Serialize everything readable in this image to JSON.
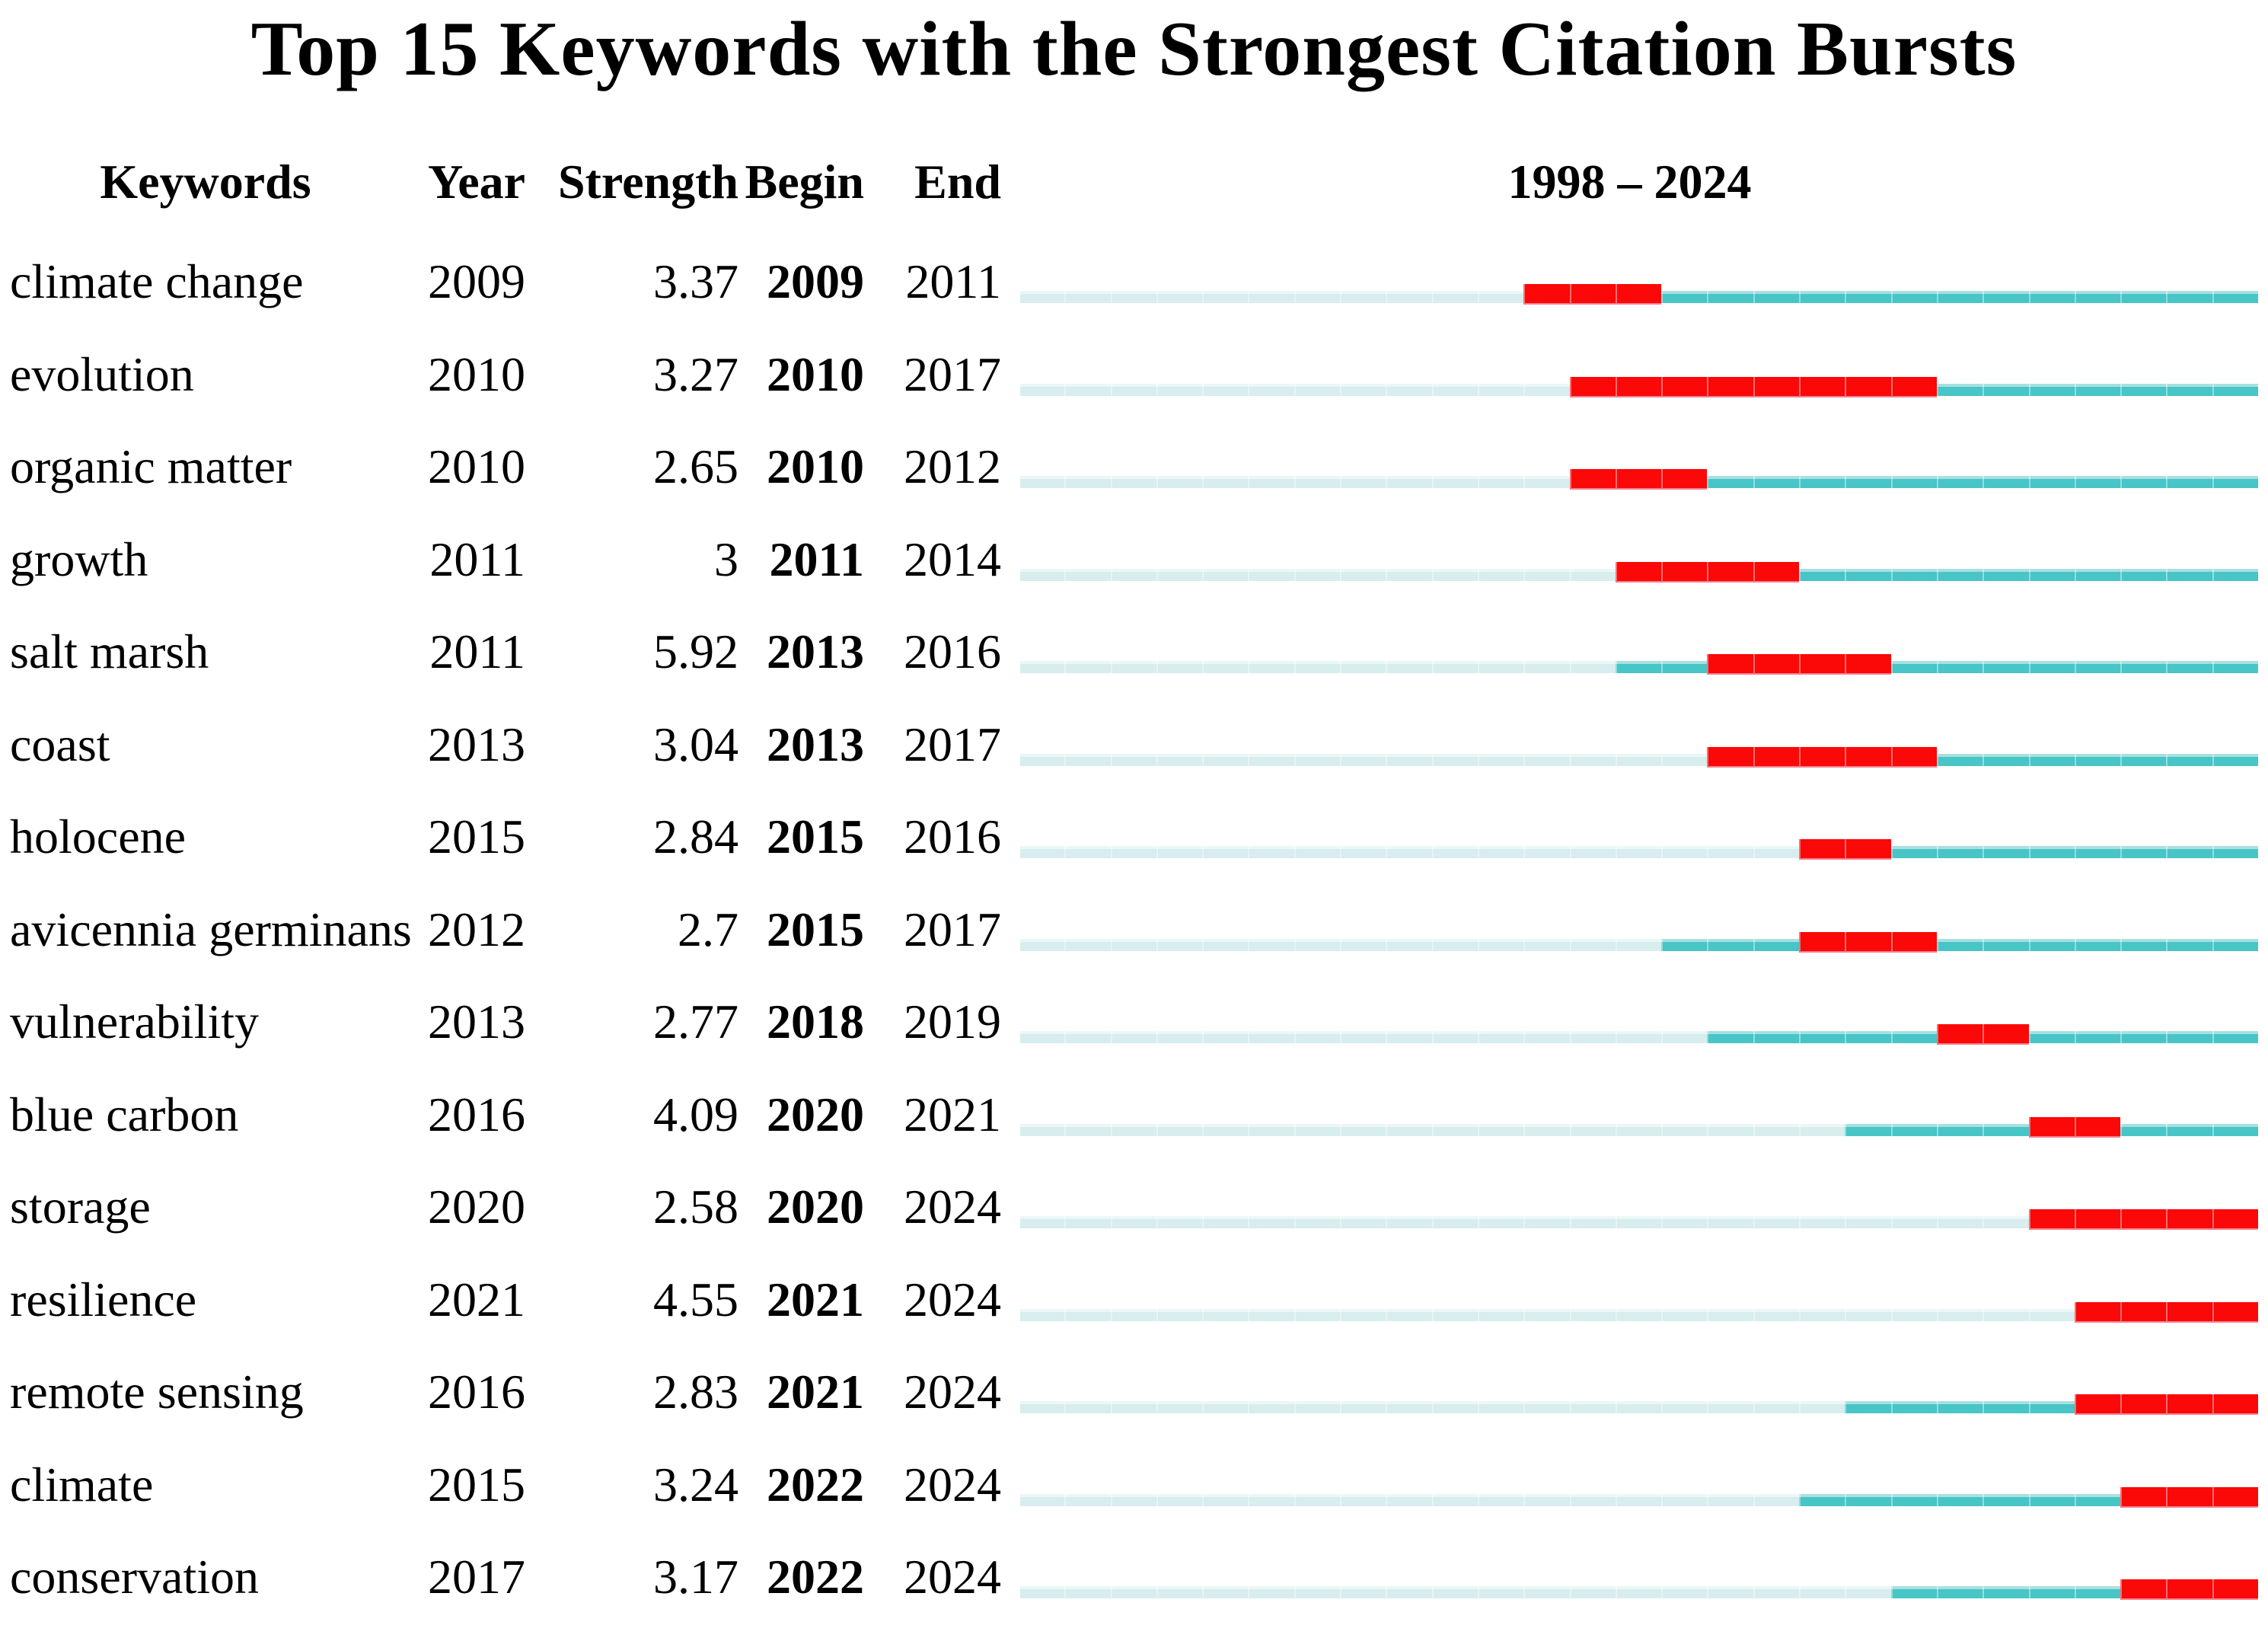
{
  "title": "Top 15 Keywords with the Strongest Citation Bursts",
  "columns": {
    "keyword": "Keywords",
    "year": "Year",
    "strength": "Strength",
    "begin": "Begin",
    "end": "End",
    "range": "1998 – 2024"
  },
  "timeline": {
    "start_year": 1998,
    "end_year": 2024,
    "cells": 27
  },
  "colors": {
    "pre_appearance": "#d7edee",
    "active": "#47c5c7",
    "burst": "#fb0808",
    "text": "#000000"
  },
  "rows": [
    {
      "keyword": "climate change",
      "year": "2009",
      "strength": "3.37",
      "begin": "2009",
      "end": "2011"
    },
    {
      "keyword": "evolution",
      "year": "2010",
      "strength": "3.27",
      "begin": "2010",
      "end": "2017"
    },
    {
      "keyword": "organic matter",
      "year": "2010",
      "strength": "2.65",
      "begin": "2010",
      "end": "2012"
    },
    {
      "keyword": "growth",
      "year": "2011",
      "strength": "3",
      "begin": "2011",
      "end": "2014"
    },
    {
      "keyword": "salt marsh",
      "year": "2011",
      "strength": "5.92",
      "begin": "2013",
      "end": "2016"
    },
    {
      "keyword": "coast",
      "year": "2013",
      "strength": "3.04",
      "begin": "2013",
      "end": "2017"
    },
    {
      "keyword": "holocene",
      "year": "2015",
      "strength": "2.84",
      "begin": "2015",
      "end": "2016"
    },
    {
      "keyword": "avicennia germinans",
      "year": "2012",
      "strength": "2.7",
      "begin": "2015",
      "end": "2017"
    },
    {
      "keyword": "vulnerability",
      "year": "2013",
      "strength": "2.77",
      "begin": "2018",
      "end": "2019"
    },
    {
      "keyword": "blue carbon",
      "year": "2016",
      "strength": "4.09",
      "begin": "2020",
      "end": "2021"
    },
    {
      "keyword": "storage",
      "year": "2020",
      "strength": "2.58",
      "begin": "2020",
      "end": "2024"
    },
    {
      "keyword": "resilience",
      "year": "2021",
      "strength": "4.55",
      "begin": "2021",
      "end": "2024"
    },
    {
      "keyword": "remote sensing",
      "year": "2016",
      "strength": "2.83",
      "begin": "2021",
      "end": "2024"
    },
    {
      "keyword": "climate",
      "year": "2015",
      "strength": "3.24",
      "begin": "2022",
      "end": "2024"
    },
    {
      "keyword": "conservation",
      "year": "2017",
      "strength": "3.17",
      "begin": "2022",
      "end": "2024"
    }
  ],
  "chart_data": {
    "type": "table",
    "subtype": "citation-burst-timeline",
    "title": "Top 15 Keywords with the Strongest Citation Bursts",
    "columns": [
      "Keywords",
      "Year",
      "Strength",
      "Begin",
      "End",
      "1998 – 2024"
    ],
    "x_range": [
      1998,
      2024
    ],
    "bar_encoding": {
      "pale_cyan": "years before keyword first appearance",
      "teal": "years keyword active without burst",
      "red": "citation burst period (Begin–End)"
    },
    "rows": [
      {
        "keyword": "climate change",
        "year": 2009,
        "strength": 3.37,
        "begin": 2009,
        "end": 2011
      },
      {
        "keyword": "evolution",
        "year": 2010,
        "strength": 3.27,
        "begin": 2010,
        "end": 2017
      },
      {
        "keyword": "organic matter",
        "year": 2010,
        "strength": 2.65,
        "begin": 2010,
        "end": 2012
      },
      {
        "keyword": "growth",
        "year": 2011,
        "strength": 3,
        "begin": 2011,
        "end": 2014
      },
      {
        "keyword": "salt marsh",
        "year": 2011,
        "strength": 5.92,
        "begin": 2013,
        "end": 2016
      },
      {
        "keyword": "coast",
        "year": 2013,
        "strength": 3.04,
        "begin": 2013,
        "end": 2017
      },
      {
        "keyword": "holocene",
        "year": 2015,
        "strength": 2.84,
        "begin": 2015,
        "end": 2016
      },
      {
        "keyword": "avicennia germinans",
        "year": 2012,
        "strength": 2.7,
        "begin": 2015,
        "end": 2017
      },
      {
        "keyword": "vulnerability",
        "year": 2013,
        "strength": 2.77,
        "begin": 2018,
        "end": 2019
      },
      {
        "keyword": "blue carbon",
        "year": 2016,
        "strength": 4.09,
        "begin": 2020,
        "end": 2021
      },
      {
        "keyword": "storage",
        "year": 2020,
        "strength": 2.58,
        "begin": 2020,
        "end": 2024
      },
      {
        "keyword": "resilience",
        "year": 2021,
        "strength": 4.55,
        "begin": 2021,
        "end": 2024
      },
      {
        "keyword": "remote sensing",
        "year": 2016,
        "strength": 2.83,
        "begin": 2021,
        "end": 2024
      },
      {
        "keyword": "climate",
        "year": 2015,
        "strength": 3.24,
        "begin": 2022,
        "end": 2024
      },
      {
        "keyword": "conservation",
        "year": 2017,
        "strength": 3.17,
        "begin": 2022,
        "end": 2024
      }
    ]
  }
}
